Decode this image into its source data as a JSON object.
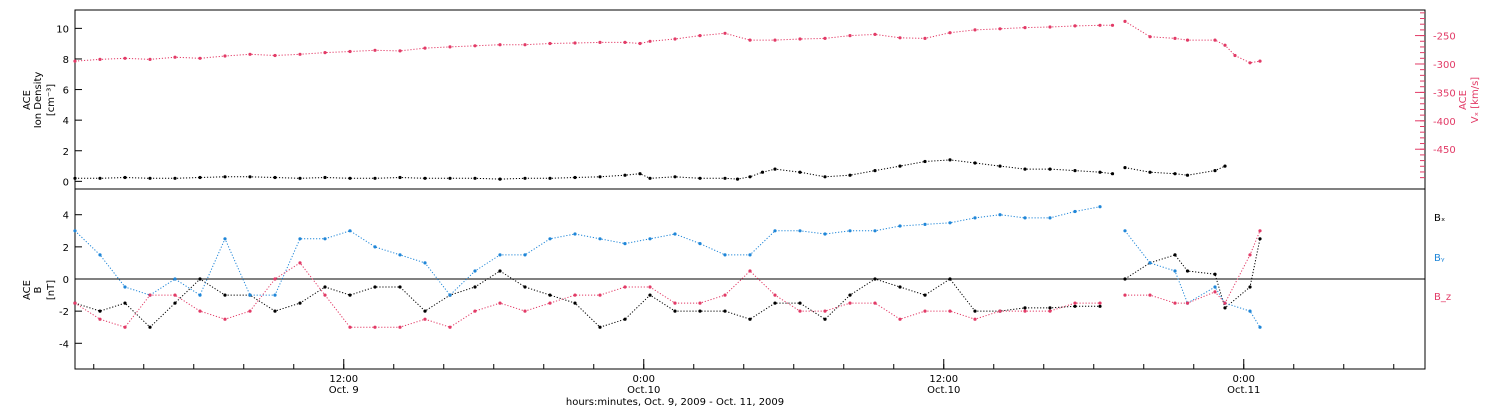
{
  "colors": {
    "black": "#000000",
    "blue": "#1f86d8",
    "red": "#e23a66",
    "frame": "#000000"
  },
  "x_axis": {
    "caption": "hours:minutes, Oct.  9, 2009 - Oct. 11, 2009",
    "range_hours": [
      0,
      54
    ],
    "major_ticks": [
      {
        "hour": 10.75,
        "time": "12:00",
        "date": "Oct. 9"
      },
      {
        "hour": 22.75,
        "time": "0:00",
        "date": "Oct.10"
      },
      {
        "hour": 34.75,
        "time": "12:00",
        "date": "Oct.10"
      },
      {
        "hour": 46.75,
        "time": "0:00",
        "date": "Oct.11"
      }
    ]
  },
  "chart_data": [
    {
      "type": "scatter",
      "panel": "top",
      "ylabel_left": [
        "ACE",
        "Ion Density",
        "[cm⁻³]"
      ],
      "ylabel_right": [
        "ACE",
        "Vₓ [km/s]"
      ],
      "left_axis": {
        "ylim": [
          -0.5,
          11.2
        ],
        "ticks": [
          0,
          2,
          4,
          6,
          8,
          10
        ]
      },
      "right_axis": {
        "ylim": [
          -520,
          -205
        ],
        "ticks": [
          -250,
          -300,
          -350,
          -400,
          -450
        ],
        "tick_labels": [
          "-250",
          "-300",
          "-350",
          "-400",
          "-450"
        ]
      },
      "series": [
        {
          "color_key": "black",
          "axis": "left",
          "x": [
            0,
            1,
            2,
            3,
            4,
            5,
            6,
            7,
            8,
            9,
            10,
            11,
            12,
            13,
            14,
            15,
            16,
            17,
            18,
            19,
            20,
            21,
            22,
            22.6,
            23,
            24,
            25,
            26,
            26.5,
            27,
            27.5,
            28,
            29,
            30,
            31,
            32,
            33,
            34,
            35,
            36,
            37,
            38,
            39,
            40,
            41,
            41.5,
            41.8,
            42,
            43,
            44,
            44.5,
            45.6,
            46,
            46.4
          ],
          "y": [
            0.2,
            0.2,
            0.25,
            0.2,
            0.2,
            0.25,
            0.3,
            0.3,
            0.25,
            0.2,
            0.25,
            0.2,
            0.2,
            0.25,
            0.2,
            0.2,
            0.2,
            0.15,
            0.2,
            0.2,
            0.25,
            0.3,
            0.4,
            0.5,
            0.2,
            0.3,
            0.2,
            0.2,
            0.15,
            0.3,
            0.6,
            0.8,
            0.6,
            0.3,
            0.4,
            0.7,
            1.0,
            1.3,
            1.4,
            1.2,
            1.0,
            0.8,
            0.8,
            0.7,
            0.6,
            0.5,
            null,
            0.9,
            0.6,
            0.5,
            0.4,
            0.7,
            1.0,
            null
          ]
        },
        {
          "color_key": "red",
          "axis": "right",
          "x": [
            0,
            1,
            2,
            3,
            4,
            5,
            6,
            7,
            8,
            9,
            10,
            11,
            12,
            13,
            14,
            15,
            16,
            17,
            18,
            19,
            20,
            21,
            22,
            22.6,
            23,
            24,
            25,
            26,
            27,
            28,
            29,
            30,
            31,
            32,
            33,
            34,
            35,
            36,
            37,
            38,
            39,
            40,
            41,
            41.5,
            41.8,
            42,
            43,
            44,
            44.5,
            45.6,
            46,
            46.4,
            47,
            47.4
          ],
          "y": [
            -295,
            -292,
            -290,
            -292,
            -288,
            -290,
            -286,
            -283,
            -285,
            -283,
            -280,
            -278,
            -276,
            -277,
            -272,
            -270,
            -268,
            -266,
            -266,
            -264,
            -263,
            -262,
            -262,
            -264,
            -260,
            -256,
            -250,
            -246,
            -258,
            -258,
            -256,
            -255,
            -250,
            -248,
            -254,
            -255,
            -245,
            -240,
            -238,
            -236,
            -235,
            -233,
            -232,
            -232,
            null,
            -225,
            -252,
            -255,
            -258,
            -258,
            -267,
            -285,
            -298,
            -295
          ]
        }
      ]
    },
    {
      "type": "scatter",
      "panel": "bottom",
      "ylabel_left": [
        "ACE",
        "B",
        "[nT]"
      ],
      "ylim": [
        -5.6,
        5.6
      ],
      "ticks": [
        -4,
        -2,
        0,
        2,
        4
      ],
      "legend_labels": [
        "Bₓ",
        "Bᵧ",
        "B_z"
      ],
      "series": [
        {
          "name": "Bx",
          "label": "Bₓ",
          "color_key": "black",
          "x": [
            0,
            1,
            2,
            3,
            4,
            5,
            6,
            7,
            8,
            9,
            10,
            11,
            12,
            13,
            14,
            15,
            16,
            17,
            18,
            19,
            20,
            21,
            22,
            23,
            24,
            25,
            26,
            27,
            28,
            29,
            30,
            31,
            32,
            33,
            34,
            35,
            36,
            37,
            38,
            39,
            40,
            41,
            41.5,
            42,
            43,
            44,
            44.5,
            45.6,
            46,
            47,
            47.4
          ],
          "y": [
            -1.5,
            -2,
            -1.5,
            -3,
            -1.5,
            0,
            -1,
            -1,
            -2,
            -1.5,
            -0.5,
            -1,
            -0.5,
            -0.5,
            -2,
            -1,
            -0.5,
            0.5,
            -0.5,
            -1,
            -1.5,
            -3,
            -2.5,
            -1,
            -2,
            -2,
            -2,
            -2.5,
            -1.5,
            -1.5,
            -2.5,
            -1,
            0,
            -0.5,
            -1,
            0,
            -2,
            -2,
            -1.8,
            -1.8,
            -1.7,
            -1.7,
            null,
            0,
            1,
            1.5,
            0.5,
            0.3,
            -1.8,
            -0.5,
            2.5
          ]
        },
        {
          "name": "By",
          "label": "Bᵧ",
          "color_key": "blue",
          "x": [
            0,
            1,
            2,
            3,
            4,
            5,
            6,
            7,
            8,
            9,
            10,
            11,
            12,
            13,
            14,
            15,
            16,
            17,
            18,
            19,
            20,
            21,
            22,
            23,
            24,
            25,
            26,
            27,
            28,
            29,
            30,
            31,
            32,
            33,
            34,
            35,
            36,
            37,
            38,
            39,
            40,
            41,
            41.5,
            42,
            43,
            44,
            44.5,
            45.6,
            46,
            47,
            47.4
          ],
          "y": [
            3,
            1.5,
            -0.5,
            -1,
            0,
            -1,
            2.5,
            -1,
            -1,
            2.5,
            2.5,
            3,
            2,
            1.5,
            1,
            -1,
            0.5,
            1.5,
            1.5,
            2.5,
            2.8,
            2.5,
            2.2,
            2.5,
            2.8,
            2.2,
            1.5,
            1.5,
            3,
            3,
            2.8,
            3,
            3,
            3.3,
            3.4,
            3.5,
            3.8,
            4,
            3.8,
            3.8,
            4.2,
            4.5,
            null,
            3,
            1,
            0.5,
            -1.5,
            -0.5,
            -1.5,
            -2,
            -3
          ]
        },
        {
          "name": "Bz",
          "label": "B_z",
          "color_key": "red",
          "x": [
            0,
            1,
            2,
            3,
            4,
            5,
            6,
            7,
            8,
            9,
            10,
            11,
            12,
            13,
            14,
            15,
            16,
            17,
            18,
            19,
            20,
            21,
            22,
            23,
            24,
            25,
            26,
            27,
            28,
            29,
            30,
            31,
            32,
            33,
            34,
            35,
            36,
            37,
            38,
            39,
            40,
            41,
            41.5,
            42,
            43,
            44,
            44.5,
            45.6,
            46,
            47,
            47.4
          ],
          "y": [
            -1.5,
            -2.5,
            -3,
            -1,
            -1,
            -2,
            -2.5,
            -2,
            0,
            1,
            -1,
            -3,
            -3,
            -3,
            -2.5,
            -3,
            -2,
            -1.5,
            -2,
            -1.5,
            -1,
            -1,
            -0.5,
            -0.5,
            -1.5,
            -1.5,
            -1,
            0.5,
            -1,
            -2,
            -2,
            -1.5,
            -1.5,
            -2.5,
            -2,
            -2,
            -2.5,
            -2,
            -2,
            -2,
            -1.5,
            -1.5,
            null,
            -1,
            -1,
            -1.5,
            -1.5,
            -0.8,
            -1.5,
            1.5,
            3
          ]
        }
      ]
    }
  ]
}
